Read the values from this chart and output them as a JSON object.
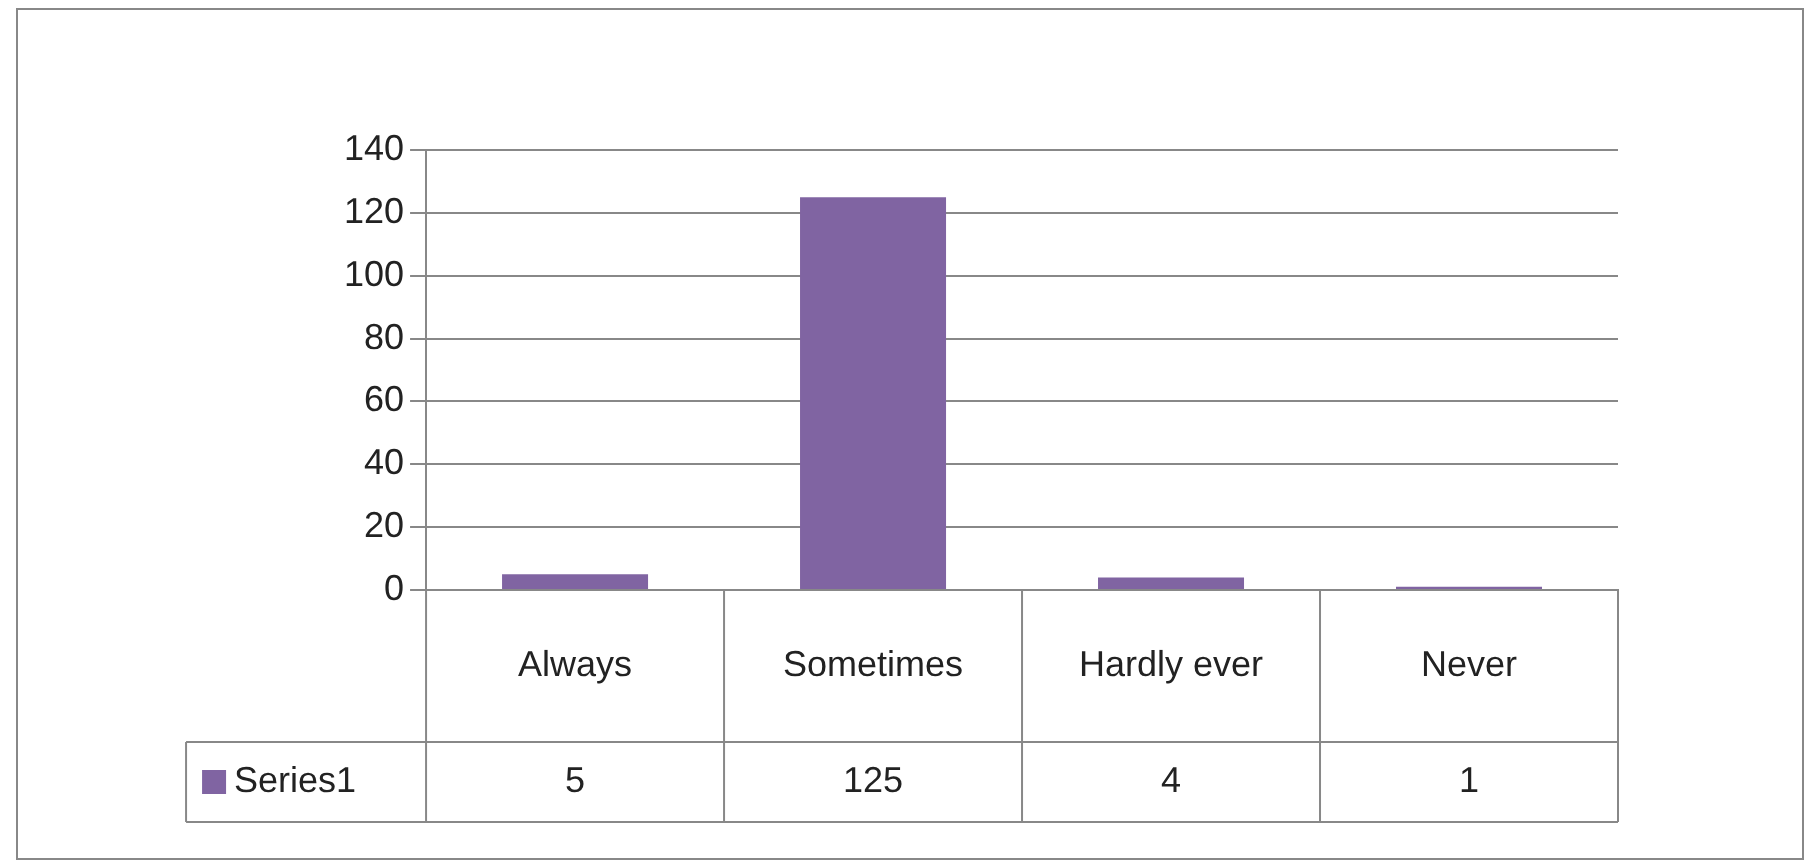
{
  "chart_data": {
    "type": "bar",
    "categories": [
      "Always",
      "Sometimes",
      "Hardly ever",
      "Never"
    ],
    "series": [
      {
        "name": "Series1",
        "color": "#8064a2",
        "values": [
          5,
          125,
          4,
          1
        ]
      }
    ],
    "ylim": [
      0,
      140
    ],
    "yticks": [
      0,
      20,
      40,
      60,
      80,
      100,
      120,
      140
    ],
    "grid": "y",
    "data_labels": true,
    "legend": "bottom"
  }
}
